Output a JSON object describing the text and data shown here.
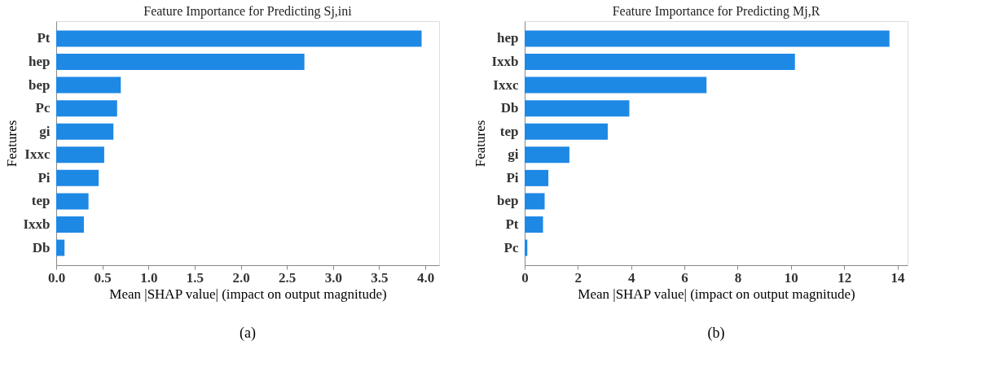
{
  "chart_data": [
    {
      "type": "bar",
      "orientation": "horizontal",
      "title": "Feature Importance for Predicting Sj,ini",
      "xlabel": "Mean |SHAP value| (impact on output magnitude)",
      "ylabel": "Features",
      "categories": [
        "Pt",
        "hep",
        "bep",
        "Pc",
        "gi",
        "Ixxc",
        "Pi",
        "tep",
        "Ixxb",
        "Db"
      ],
      "series": [
        {
          "color": "#1e88e5",
          "values": [
            3.96,
            2.69,
            0.7,
            0.66,
            0.62,
            0.52,
            0.46,
            0.35,
            0.3,
            0.09
          ]
        }
      ],
      "xlim": [
        0,
        4.15
      ],
      "xticks": [
        {
          "value": 0,
          "label": "0.0"
        },
        0.5,
        {
          "value": 1,
          "label": "1.0"
        },
        1.5,
        {
          "value": 2,
          "label": "2.0"
        },
        2.5,
        {
          "value": 3,
          "label": "3.0"
        },
        3.5,
        {
          "value": 4,
          "label": "4.0"
        }
      ],
      "grid": false,
      "annotations": [
        "(a)"
      ]
    },
    {
      "type": "bar",
      "orientation": "horizontal",
      "title": "Feature Importance for Predicting Mj,R",
      "xlabel": "Mean |SHAP value| (impact on output magnitude)",
      "ylabel": "Features",
      "categories": [
        "hep",
        "Ixxb",
        "Ixxc",
        "Db",
        "tep",
        "gi",
        "Pi",
        "bep",
        "Pt",
        "Pc"
      ],
      "series": [
        {
          "color": "#1e88e5",
          "values": [
            13.7,
            10.15,
            6.83,
            3.93,
            3.12,
            1.68,
            0.89,
            0.75,
            0.69,
            0.1
          ]
        }
      ],
      "xlim": [
        0,
        14.38
      ],
      "xticks": [
        0,
        2,
        4,
        6,
        8,
        10,
        12,
        14
      ],
      "grid": false,
      "annotations": [
        "(b)"
      ]
    }
  ]
}
